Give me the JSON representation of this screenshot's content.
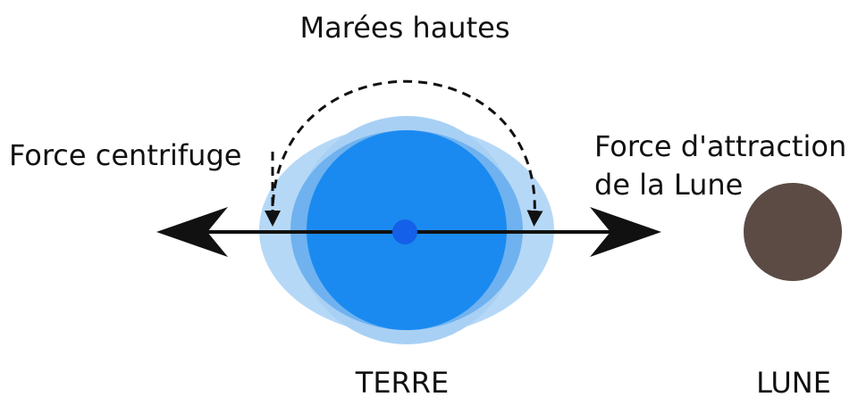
{
  "labels": {
    "top": "Marées hautes",
    "left": "Force centrifuge",
    "right_line1": "Force d'attraction",
    "right_line2": "de la Lune",
    "earth": "TERRE",
    "moon": "LUNE"
  }
}
